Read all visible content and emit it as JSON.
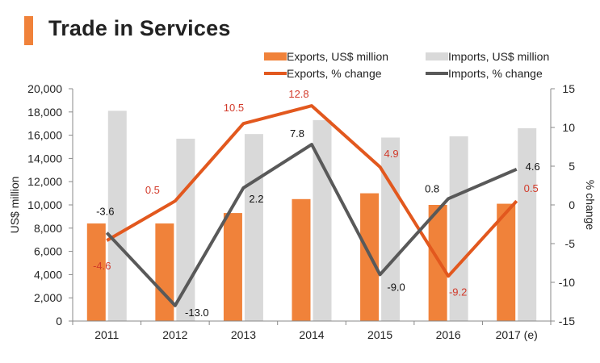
{
  "title": "Trade in Services",
  "colors": {
    "exports_bar": "#f0823a",
    "imports_bar": "#d9d9d9",
    "exports_line": "#e2581e",
    "imports_line": "#595959",
    "exports_label": "#d23a2a",
    "imports_label": "#111111",
    "title_accent": "#f0823a"
  },
  "chart_data": {
    "type": "bar",
    "categories": [
      "2011",
      "2012",
      "2013",
      "2014",
      "2015",
      "2016",
      "2017 (e)"
    ],
    "series": [
      {
        "name": "Exports, US$ million",
        "type": "bar",
        "axis": "left",
        "values": [
          8400,
          8400,
          9300,
          10500,
          11000,
          10000,
          10100
        ]
      },
      {
        "name": "Imports, US$ million",
        "type": "bar",
        "axis": "left",
        "values": [
          18100,
          15700,
          16100,
          17300,
          15800,
          15900,
          16600
        ]
      },
      {
        "name": "Exports, % change",
        "type": "line",
        "axis": "right",
        "values": [
          -4.6,
          0.5,
          10.5,
          12.8,
          4.9,
          -9.2,
          0.5
        ],
        "labels": [
          "-4.6",
          "0.5",
          "10.5",
          "12.8",
          "4.9",
          "-9.2",
          "0.5"
        ]
      },
      {
        "name": "Imports, % change",
        "type": "line",
        "axis": "right",
        "values": [
          -3.6,
          -13.0,
          2.2,
          7.8,
          -9.0,
          0.8,
          4.6
        ],
        "labels": [
          "-3.6",
          "-13.0",
          "2.2",
          "7.8",
          "-9.0",
          "0.8",
          "4.6"
        ]
      }
    ],
    "ylabel": "US$ million",
    "y2label": "% change",
    "ylim": [
      0,
      20000
    ],
    "y2lim": [
      -15,
      15
    ],
    "yticks": [
      "0",
      "2,000",
      "4,000",
      "6,000",
      "8,000",
      "10,000",
      "12,000",
      "14,000",
      "16,000",
      "18,000",
      "20,000"
    ],
    "y2ticks": [
      "-15",
      "-10",
      "-5",
      "0",
      "5",
      "10",
      "15"
    ],
    "legend_position": "top",
    "grid": false
  }
}
